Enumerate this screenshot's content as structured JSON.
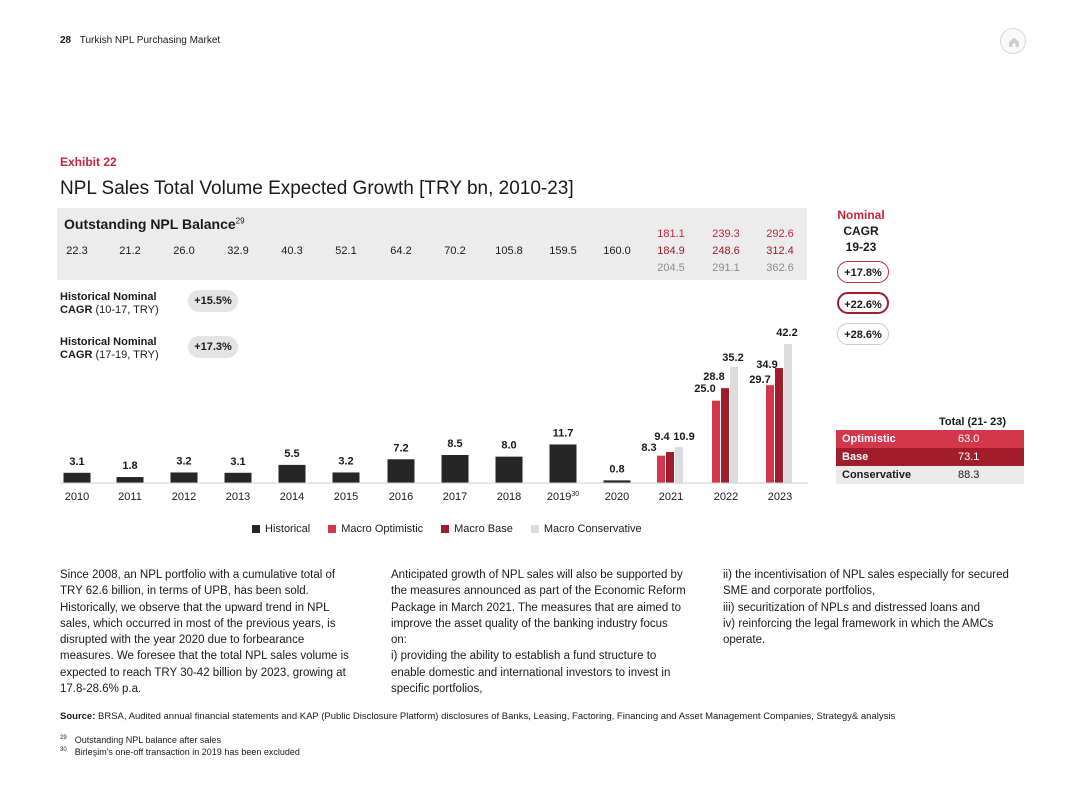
{
  "header": {
    "page_number": "28",
    "report_title": "Turkish NPL Purchasing Market",
    "home_icon": "home-icon"
  },
  "exhibit": {
    "label": "Exhibit 22",
    "title": "NPL Sales Total Volume Expected Growth [TRY bn, 2010-23]"
  },
  "outstanding": {
    "title": "Outstanding NPL Balance",
    "footnote_ref": "29",
    "historical": [
      "22.3",
      "21.2",
      "26.0",
      "32.9",
      "40.3",
      "52.1",
      "64.2",
      "70.2",
      "105.8",
      "159.5",
      "160.0"
    ],
    "forecast_optimistic": [
      "181.1",
      "239.3",
      "292.6"
    ],
    "forecast_base": [
      "184.9",
      "248.6",
      "312.4"
    ],
    "forecast_conservative": [
      "204.5",
      "291.1",
      "362.6"
    ]
  },
  "historical_cagr": [
    {
      "label_bold": "Historical Nominal",
      "label_bold2": "CAGR",
      "label_rest": " (10-17, TRY)",
      "value": "+15.5%"
    },
    {
      "label_bold": "Historical Nominal",
      "label_bold2": "CAGR",
      "label_rest": " (17-19, TRY)",
      "value": "+17.3%"
    }
  ],
  "nominal_cagr": {
    "title_line1": "Nominal",
    "title_line2": "CAGR",
    "title_line3": "19-23",
    "values": [
      "+17.8%",
      "+22.6%",
      "+28.6%"
    ]
  },
  "legend": [
    "Historical",
    "Macro Optimistic",
    "Macro Base",
    "Macro Conservative"
  ],
  "totals": {
    "header": "Total (21- 23)",
    "rows": [
      {
        "label": "Optimistic",
        "value": "63.0"
      },
      {
        "label": "Base",
        "value": "73.1"
      },
      {
        "label": "Conservative",
        "value": "88.3"
      }
    ]
  },
  "colors": {
    "historical": "#262626",
    "optimistic": "#d4374c",
    "base": "#a21d2c",
    "conservative": "#dcdcdc",
    "accent": "#c4253c"
  },
  "chart_data": {
    "type": "bar",
    "categories": [
      "2010",
      "2011",
      "2012",
      "2013",
      "2014",
      "2015",
      "2016",
      "2017",
      "2018",
      "2019",
      "2020",
      "2021",
      "2022",
      "2023"
    ],
    "category_footnote": {
      "index": 9,
      "ref": "30"
    },
    "historical": [
      3.1,
      1.8,
      3.2,
      3.1,
      5.5,
      3.2,
      7.2,
      8.5,
      8.0,
      11.7,
      0.8
    ],
    "historical_labels": [
      "3.1",
      "1.8",
      "3.2",
      "3.1",
      "5.5",
      "3.2",
      "7.2",
      "8.5",
      "8.0",
      "11.7",
      "0.8"
    ],
    "series": [
      {
        "name": "Macro Optimistic",
        "values": [
          null,
          null,
          null,
          null,
          null,
          null,
          null,
          null,
          null,
          null,
          null,
          8.3,
          25.0,
          29.7
        ],
        "labels": [
          "8.3",
          "25.0",
          "29.7"
        ]
      },
      {
        "name": "Macro Base",
        "values": [
          null,
          null,
          null,
          null,
          null,
          null,
          null,
          null,
          null,
          null,
          null,
          9.4,
          28.8,
          34.9
        ],
        "labels": [
          "9.4",
          "28.8",
          "34.9"
        ]
      },
      {
        "name": "Macro Conservative",
        "values": [
          null,
          null,
          null,
          null,
          null,
          null,
          null,
          null,
          null,
          null,
          null,
          10.9,
          35.2,
          42.2
        ],
        "labels": [
          "10.9",
          "35.2",
          "42.2"
        ]
      }
    ],
    "ylim": [
      0,
      42.2
    ]
  },
  "body": {
    "col1": "Since 2008, an NPL portfolio with a cumulative total of TRY 62.6 billion, in terms of UPB, has been sold. Historically, we observe that the upward trend in NPL sales, which occurred in most of the previous years, is disrupted with the year 2020 due to forbearance measures. We foresee that the total NPL sales volume is expected to reach TRY 30-42 billion by 2023, growing at 17.8-28.6% p.a.",
    "col2a": "Anticipated growth of NPL sales will also be supported by the measures announced as part of the Economic Reform Package in March 2021. The measures that are aimed to improve the asset quality of the banking industry focus on:",
    "col2b": "i) providing the ability to establish a fund structure to enable domestic and international investors to invest in specific portfolios,",
    "col3a": "ii) the incentivisation of NPL sales especially for secured SME and corporate portfolios,",
    "col3b": "iii) securitization of NPLs and distressed loans and",
    "col3c": "iv) reinforcing the legal framework in which the AMCs operate."
  },
  "source": {
    "label": "Source:",
    "text": " BRSA, Audited annual financial statements and KAP (Public Disclosure Platform) disclosures of Banks, Leasing, Factoring, Financing and Asset Management Companies, Strategy& analysis"
  },
  "footnotes": [
    {
      "ref": "29",
      "text": "Outstanding NPL balance after sales"
    },
    {
      "ref": "30",
      "text": "Birleşim's one-off transaction in 2019 has been excluded"
    }
  ]
}
